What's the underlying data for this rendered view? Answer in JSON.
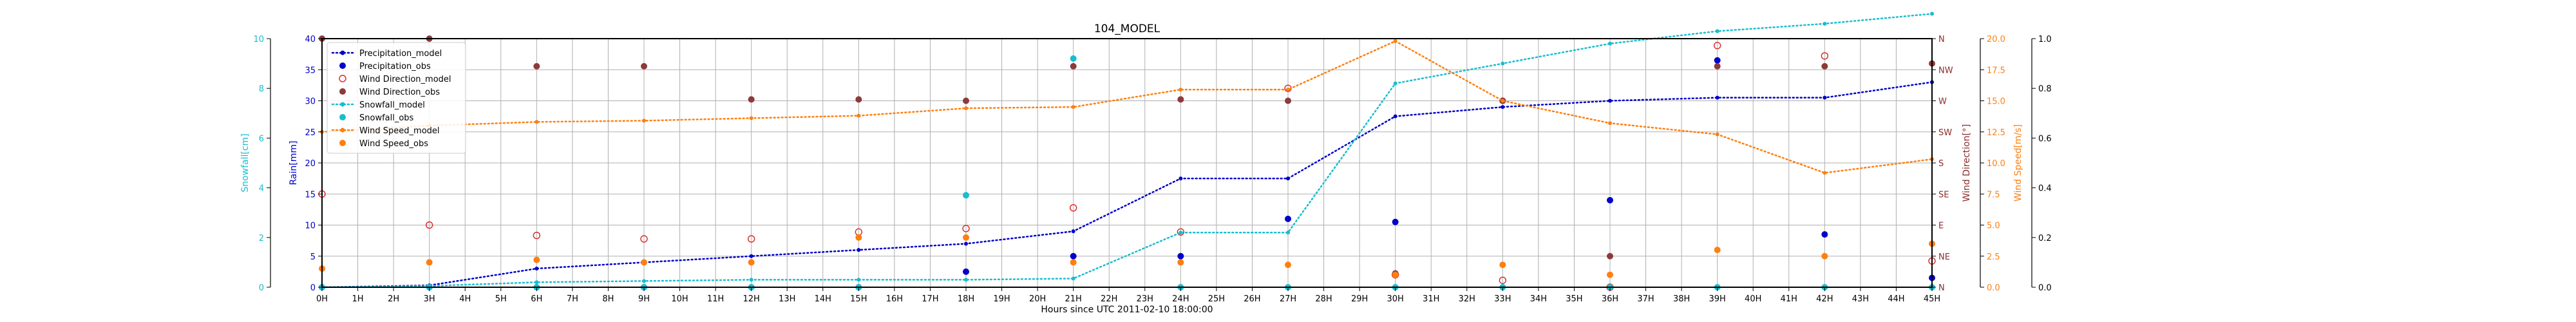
{
  "chart_data": {
    "type": "line",
    "title": "104_MODEL",
    "xlabel": "Hours since UTC 2011-02-10 18:00:00",
    "x_ticks": [
      "0H",
      "1H",
      "2H",
      "3H",
      "4H",
      "5H",
      "6H",
      "7H",
      "8H",
      "9H",
      "10H",
      "11H",
      "12H",
      "13H",
      "14H",
      "15H",
      "16H",
      "17H",
      "18H",
      "19H",
      "20H",
      "21H",
      "22H",
      "23H",
      "24H",
      "25H",
      "26H",
      "27H",
      "28H",
      "29H",
      "30H",
      "31H",
      "32H",
      "33H",
      "34H",
      "35H",
      "36H",
      "37H",
      "38H",
      "39H",
      "40H",
      "41H",
      "42H",
      "43H",
      "44H",
      "45H"
    ],
    "xlim": [
      0,
      45
    ],
    "grid": true,
    "legend_position": "top-left",
    "axes": {
      "rain": {
        "label": "Rain[mm]",
        "range": [
          0,
          40
        ],
        "ticks": [
          "0",
          "5",
          "10",
          "15",
          "20",
          "25",
          "30",
          "35",
          "40"
        ],
        "color": "#0000cc"
      },
      "snow": {
        "label": "Snowfall[cm]",
        "range": [
          0,
          10
        ],
        "ticks": [
          "0",
          "2",
          "4",
          "6",
          "8",
          "10"
        ],
        "color": "#17becf"
      },
      "wdir": {
        "label": "Wind Direction[°]",
        "range": [
          0,
          360
        ],
        "ticks": [
          "N",
          "NE",
          "E",
          "SE",
          "S",
          "SW",
          "W",
          "NW",
          "N"
        ],
        "color": "#8c2d2d"
      },
      "wspd": {
        "label": "Wind Speed[m/s]",
        "range": [
          0,
          20
        ],
        "ticks": [
          "0.0",
          "2.5",
          "5.0",
          "7.5",
          "10.0",
          "12.5",
          "15.0",
          "17.5",
          "20.0"
        ],
        "color": "#ff7f0e"
      },
      "extra": {
        "range": [
          0,
          1
        ],
        "ticks": [
          "0.0",
          "0.2",
          "0.4",
          "0.6",
          "0.8",
          "1.0"
        ],
        "color": "#000000"
      }
    },
    "series": [
      {
        "name": "Precipitation_model",
        "axis": "rain",
        "kind": "line",
        "color": "#0000cc",
        "x": [
          0,
          3,
          6,
          9,
          12,
          15,
          18,
          21,
          24,
          27,
          30,
          33,
          36,
          39,
          42,
          45
        ],
        "y": [
          0,
          0.3,
          3,
          4,
          5,
          6,
          7,
          9,
          17.5,
          17.5,
          27.5,
          29,
          30,
          30.5,
          30.5,
          33
        ]
      },
      {
        "name": "Precipitation_obs",
        "axis": "rain",
        "kind": "points",
        "color": "#0000cc",
        "x": [
          0,
          3,
          6,
          9,
          12,
          15,
          18,
          21,
          24,
          27,
          30,
          33,
          36,
          39,
          42,
          45
        ],
        "y": [
          0,
          0,
          0,
          0,
          0,
          0,
          2.5,
          5,
          5,
          11,
          10.5,
          30,
          14,
          36.5,
          8.5,
          1.5
        ]
      },
      {
        "name": "Wind Direction_model",
        "axis": "wdir",
        "kind": "points-hollow",
        "color": "#d62728",
        "x": [
          0,
          3,
          6,
          9,
          12,
          15,
          18,
          21,
          24,
          27,
          30,
          33,
          36,
          39,
          42,
          45
        ],
        "y": [
          135,
          90,
          75,
          70,
          70,
          80,
          85,
          115,
          80,
          288,
          18,
          10,
          0,
          350,
          335,
          38
        ]
      },
      {
        "name": "Wind Direction_obs",
        "axis": "wdir",
        "kind": "points",
        "color": "#8c3a3a",
        "x": [
          0,
          3,
          6,
          9,
          12,
          15,
          18,
          21,
          24,
          27,
          30,
          33,
          36,
          39,
          42,
          45
        ],
        "y": [
          360,
          360,
          320,
          320,
          272,
          272,
          270,
          320,
          272,
          270,
          20,
          270,
          45,
          320,
          320,
          324
        ]
      },
      {
        "name": "Snowfall_model",
        "axis": "snow",
        "kind": "line",
        "color": "#17becf",
        "x": [
          0,
          3,
          6,
          9,
          12,
          15,
          18,
          21,
          24,
          27,
          30,
          33,
          36,
          39,
          42,
          45
        ],
        "y": [
          0,
          0.05,
          0.2,
          0.25,
          0.3,
          0.3,
          0.3,
          0.35,
          2.2,
          2.2,
          8.2,
          9,
          9.8,
          10.3,
          10.6,
          11
        ]
      },
      {
        "name": "Snowfall_obs",
        "axis": "snow",
        "kind": "points",
        "color": "#17becf",
        "x": [
          0,
          3,
          6,
          9,
          12,
          15,
          18,
          21,
          24,
          27,
          30,
          33,
          36,
          39,
          42,
          45
        ],
        "y": [
          0,
          0,
          0,
          0,
          0,
          0,
          3.7,
          9.2,
          0,
          0,
          0,
          0,
          0,
          0,
          0,
          0
        ]
      },
      {
        "name": "Wind Speed_model",
        "axis": "wspd",
        "kind": "line",
        "color": "#ff7f0e",
        "x": [
          0,
          3,
          6,
          9,
          12,
          15,
          18,
          21,
          24,
          27,
          30,
          33,
          36,
          39,
          42,
          45
        ],
        "y": [
          12.5,
          13,
          13.3,
          13.4,
          13.6,
          13.8,
          14.4,
          14.5,
          15.9,
          15.9,
          19.8,
          15,
          13.2,
          12.3,
          9.2,
          10.3
        ]
      },
      {
        "name": "Wind Speed_obs",
        "axis": "wspd",
        "kind": "points",
        "color": "#ff7f0e",
        "x": [
          0,
          3,
          6,
          9,
          12,
          15,
          18,
          21,
          24,
          27,
          30,
          33,
          36,
          39,
          42,
          45
        ],
        "y": [
          1.5,
          2,
          2.2,
          2,
          2,
          4,
          4,
          2,
          2,
          1.8,
          1,
          1.8,
          1,
          3,
          2.5,
          3.5
        ]
      }
    ]
  }
}
